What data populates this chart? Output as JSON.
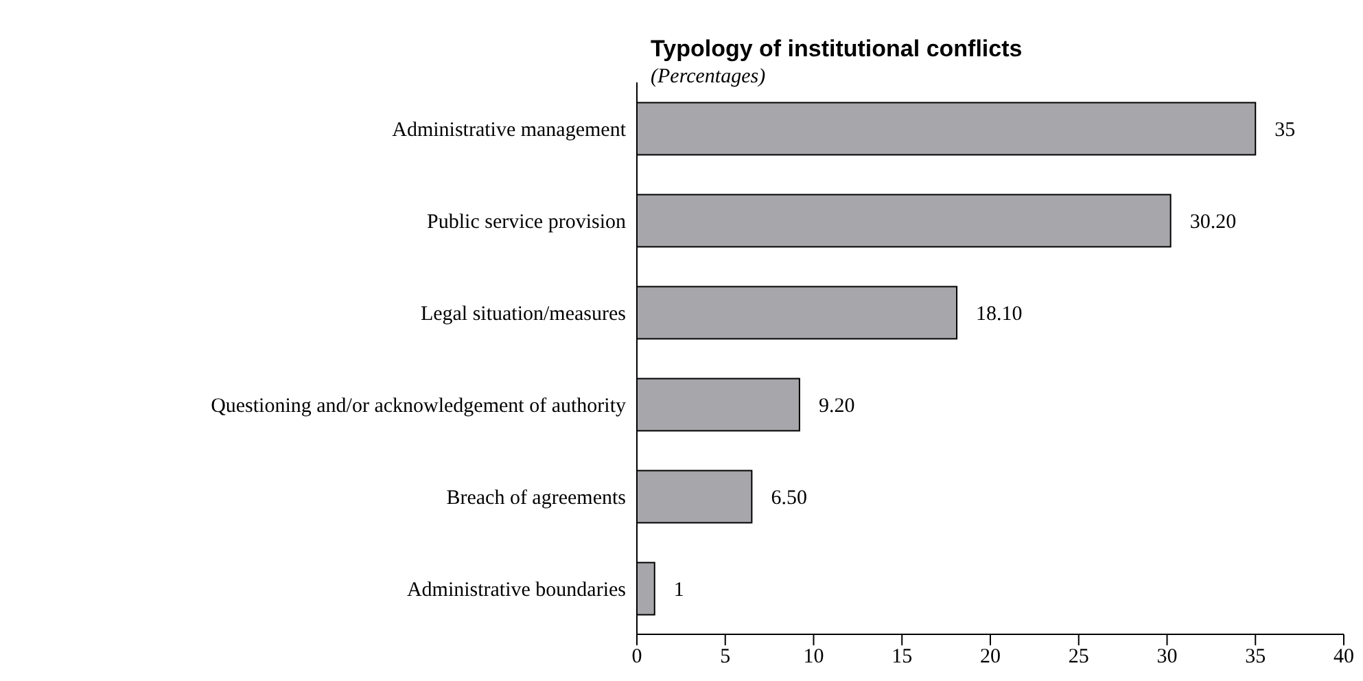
{
  "chart_data": {
    "type": "bar",
    "orientation": "horizontal",
    "title": "Typology of institutional conflicts",
    "subtitle": "(Percentages)",
    "categories": [
      "Administrative management",
      "Public service provision",
      "Legal situation/measures",
      "Questioning and/or acknowledgement of authority",
      "Breach of agreements",
      "Administrative boundaries"
    ],
    "values": [
      35,
      30.2,
      18.1,
      9.2,
      6.5,
      1
    ],
    "value_labels": [
      "35",
      "30.20",
      "18.10",
      "9.20",
      "6.50",
      "1"
    ],
    "color": "#a7a7ab",
    "xlim": [
      0,
      40
    ],
    "xticks": [
      0,
      5,
      10,
      15,
      20,
      25,
      30,
      35,
      40
    ]
  }
}
